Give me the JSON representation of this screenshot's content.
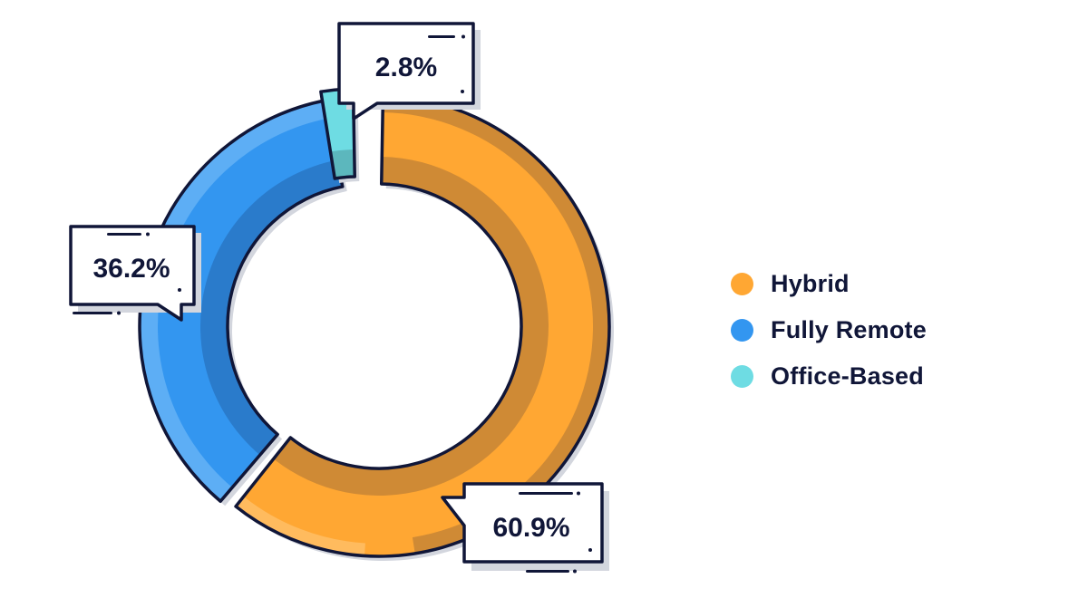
{
  "chart_data": {
    "type": "pie",
    "variant": "donut",
    "title": "",
    "categories": [
      "Hybrid",
      "Fully Remote",
      "Office-Based"
    ],
    "values": [
      60.9,
      36.2,
      2.8
    ],
    "unit": "%",
    "colors": [
      "#FFA733",
      "#3396F0",
      "#6EDCE3"
    ],
    "data_labels": [
      "60.9%",
      "36.2%",
      "2.8%"
    ],
    "legend_position": "right",
    "start_angle": "top, clockwise"
  },
  "colors": {
    "outline": "#101638",
    "shadow": "#D3D6DE",
    "hybrid": "#FFA733",
    "hybrid_dark": "#CF8A35",
    "hybrid_light": "#FFBB5E",
    "remote": "#3396F0",
    "remote_dark": "#2A7BCB",
    "remote_light": "#5DAEF5",
    "office": "#6EDCE3",
    "office_dark": "#5CB7BD"
  },
  "callouts": {
    "hybrid": "60.9%",
    "remote": "36.2%",
    "office": "2.8%"
  },
  "legend": {
    "items": [
      {
        "label": "Hybrid",
        "color": "#FFA733"
      },
      {
        "label": "Fully Remote",
        "color": "#3396F0"
      },
      {
        "label": "Office-Based",
        "color": "#6EDCE3"
      }
    ]
  }
}
